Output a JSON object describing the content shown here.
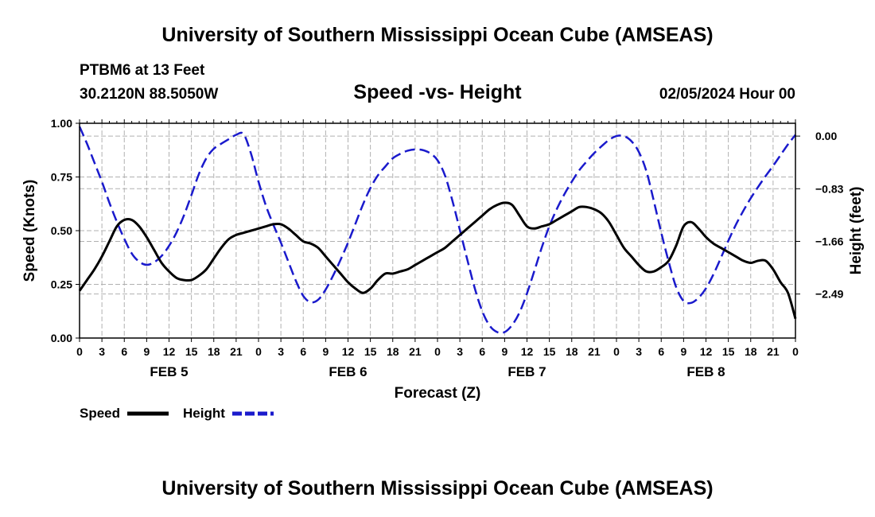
{
  "header": {
    "title": "University of Southern Mississippi Ocean Cube (AMSEAS)",
    "footer_title": "University of Southern Mississippi Ocean Cube (AMSEAS)"
  },
  "colors": {
    "speed": "#000000",
    "height": "#1a1acc",
    "grid": "#b0b0b0"
  },
  "chart_data": {
    "type": "line",
    "station": "PTBM6 at 13 Feet",
    "location": "30.2120N  88.5050W",
    "title": "Speed -vs- Height",
    "datetime": "02/05/2024 Hour 00",
    "xlabel": "Forecast (Z)",
    "ylabel_left": "Speed (Knots)",
    "ylabel_right": "Height (feet)",
    "x_range": [
      0,
      96
    ],
    "x_ticks": [
      0,
      3,
      6,
      9,
      12,
      15,
      18,
      21,
      24,
      27,
      30,
      33,
      36,
      39,
      42,
      45,
      48,
      51,
      54,
      57,
      60,
      63,
      66,
      69,
      72,
      75,
      78,
      81,
      84,
      87,
      90,
      93,
      96
    ],
    "x_tick_labels": [
      "0",
      "3",
      "6",
      "9",
      "12",
      "15",
      "18",
      "21",
      "0",
      "3",
      "6",
      "9",
      "12",
      "15",
      "18",
      "21",
      "0",
      "3",
      "6",
      "9",
      "12",
      "15",
      "18",
      "21",
      "0",
      "3",
      "6",
      "9",
      "12",
      "15",
      "18",
      "21",
      "0"
    ],
    "day_labels": [
      {
        "hour": 12,
        "label": "FEB 5"
      },
      {
        "hour": 36,
        "label": "FEB 6"
      },
      {
        "hour": 60,
        "label": "FEB 7"
      },
      {
        "hour": 84,
        "label": "FEB 8"
      }
    ],
    "left_axis": {
      "range": [
        0,
        1
      ],
      "ticks": [
        0,
        0.25,
        0.5,
        0.75,
        1.0
      ],
      "tick_labels": [
        "0.00",
        "0.25",
        "0.50",
        "0.75",
        "1.00"
      ]
    },
    "right_axis": {
      "range": [
        -3.1838,
        0.2018
      ],
      "ticks": [
        0,
        -0.83,
        -1.66,
        -2.49
      ],
      "tick_labels": [
        "0.00",
        "−0.83",
        "−1.66",
        "−2.49"
      ]
    },
    "legend": [
      {
        "name": "Speed",
        "style": "solid"
      },
      {
        "name": "Height",
        "style": "dashed"
      }
    ],
    "series": [
      {
        "name": "Speed",
        "axis": "left",
        "x": [
          0,
          1,
          2,
          3,
          4,
          5,
          6,
          7,
          8,
          9,
          10,
          11,
          12,
          13,
          14,
          15,
          16,
          17,
          18,
          19,
          20,
          21,
          22,
          23,
          24,
          25,
          26,
          27,
          28,
          29,
          30,
          31,
          32,
          33,
          34,
          35,
          36,
          37,
          38,
          39,
          40,
          41,
          42,
          43,
          44,
          45,
          46,
          47,
          48,
          49,
          50,
          51,
          52,
          53,
          54,
          55,
          56,
          57,
          58,
          59,
          60,
          61,
          62,
          63,
          64,
          65,
          66,
          67,
          68,
          69,
          70,
          71,
          72,
          73,
          74,
          75,
          76,
          77,
          78,
          79,
          80,
          81,
          82,
          83,
          84,
          85,
          86,
          87,
          88,
          89,
          90,
          91,
          92,
          93,
          94,
          95,
          96
        ],
        "values": [
          0.22,
          0.27,
          0.32,
          0.38,
          0.45,
          0.52,
          0.55,
          0.55,
          0.52,
          0.47,
          0.41,
          0.35,
          0.31,
          0.28,
          0.27,
          0.27,
          0.29,
          0.32,
          0.37,
          0.42,
          0.46,
          0.48,
          0.49,
          0.5,
          0.51,
          0.52,
          0.53,
          0.53,
          0.51,
          0.48,
          0.45,
          0.44,
          0.42,
          0.38,
          0.34,
          0.3,
          0.26,
          0.23,
          0.21,
          0.23,
          0.27,
          0.3,
          0.3,
          0.31,
          0.32,
          0.34,
          0.36,
          0.38,
          0.4,
          0.42,
          0.45,
          0.48,
          0.51,
          0.54,
          0.57,
          0.6,
          0.62,
          0.63,
          0.62,
          0.57,
          0.52,
          0.51,
          0.52,
          0.53,
          0.55,
          0.57,
          0.59,
          0.61,
          0.61,
          0.6,
          0.58,
          0.54,
          0.48,
          0.42,
          0.38,
          0.34,
          0.31,
          0.31,
          0.33,
          0.36,
          0.43,
          0.52,
          0.54,
          0.51,
          0.47,
          0.44,
          0.42,
          0.4,
          0.38,
          0.36,
          0.35,
          0.36,
          0.36,
          0.32,
          0.26,
          0.21,
          0.09
        ]
      },
      {
        "name": "Height",
        "axis": "right",
        "x": [
          0,
          1,
          2,
          3,
          4,
          5,
          6,
          7,
          8,
          9,
          10,
          11,
          12,
          13,
          14,
          15,
          16,
          17,
          18,
          19,
          20,
          21,
          22,
          23,
          24,
          25,
          26,
          27,
          28,
          29,
          30,
          31,
          32,
          33,
          34,
          35,
          36,
          37,
          38,
          39,
          40,
          41,
          42,
          43,
          44,
          45,
          46,
          47,
          48,
          49,
          50,
          51,
          52,
          53,
          54,
          55,
          56,
          57,
          58,
          59,
          60,
          61,
          62,
          63,
          64,
          65,
          66,
          67,
          68,
          69,
          70,
          71,
          72,
          73,
          74,
          75,
          76,
          77,
          78,
          79,
          80,
          81,
          82,
          83,
          84,
          85,
          86,
          87,
          88,
          89,
          90,
          91,
          92,
          93,
          94,
          95,
          96
        ],
        "values": [
          0.15,
          -0.12,
          -0.42,
          -0.72,
          -1.05,
          -1.35,
          -1.62,
          -1.85,
          -1.98,
          -2.03,
          -1.99,
          -1.89,
          -1.73,
          -1.52,
          -1.25,
          -0.93,
          -0.6,
          -0.35,
          -0.2,
          -0.12,
          -0.05,
          0.02,
          0.03,
          -0.28,
          -0.72,
          -1.1,
          -1.4,
          -1.68,
          -1.98,
          -2.28,
          -2.52,
          -2.62,
          -2.58,
          -2.42,
          -2.2,
          -1.95,
          -1.68,
          -1.38,
          -1.08,
          -0.82,
          -0.62,
          -0.48,
          -0.35,
          -0.28,
          -0.23,
          -0.21,
          -0.22,
          -0.27,
          -0.38,
          -0.62,
          -1.02,
          -1.48,
          -1.95,
          -2.4,
          -2.76,
          -2.99,
          -3.09,
          -3.09,
          -2.98,
          -2.78,
          -2.48,
          -2.12,
          -1.75,
          -1.42,
          -1.15,
          -0.92,
          -0.72,
          -0.54,
          -0.4,
          -0.27,
          -0.16,
          -0.06,
          0.0,
          0.0,
          -0.08,
          -0.25,
          -0.55,
          -1.02,
          -1.52,
          -1.98,
          -2.38,
          -2.6,
          -2.63,
          -2.55,
          -2.4,
          -2.18,
          -1.92,
          -1.65,
          -1.4,
          -1.18,
          -0.98,
          -0.8,
          -0.63,
          -0.47,
          -0.3,
          -0.13,
          0.02
        ]
      }
    ]
  }
}
